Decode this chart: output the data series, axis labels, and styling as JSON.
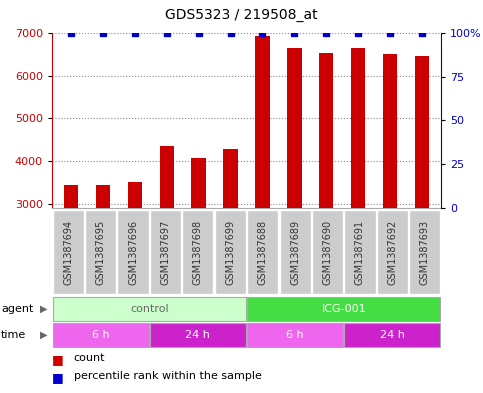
{
  "title": "GDS5323 / 219508_at",
  "samples": [
    "GSM1387694",
    "GSM1387695",
    "GSM1387696",
    "GSM1387697",
    "GSM1387698",
    "GSM1387699",
    "GSM1387688",
    "GSM1387689",
    "GSM1387690",
    "GSM1387691",
    "GSM1387692",
    "GSM1387693"
  ],
  "counts": [
    3450,
    3430,
    3520,
    4350,
    4060,
    4280,
    6940,
    6660,
    6540,
    6660,
    6500,
    6450
  ],
  "percentile": [
    100,
    100,
    100,
    100,
    100,
    100,
    100,
    100,
    100,
    100,
    100,
    100
  ],
  "ylim_left": [
    2900,
    7000
  ],
  "ylim_right": [
    0,
    100
  ],
  "yticks_left": [
    3000,
    4000,
    5000,
    6000,
    7000
  ],
  "yticks_right": [
    0,
    25,
    50,
    75,
    100
  ],
  "bar_color": "#cc0000",
  "percentile_color": "#0000cc",
  "bar_width": 0.45,
  "agent_control_color": "#ccffcc",
  "agent_icg_color": "#44dd44",
  "time_6h_color": "#ee66ee",
  "time_24h_color": "#cc22cc",
  "grid_color": "#888888",
  "sample_box_color": "#cccccc",
  "sample_text_color": "#333333",
  "agent_label": "agent",
  "time_label": "time",
  "control_label": "control",
  "icg_label": "ICG-001",
  "time_6h_label": "6 h",
  "time_24h_label": "24 h",
  "legend_count_label": "count",
  "legend_percentile_label": "percentile rank within the sample",
  "title_fontsize": 10,
  "tick_fontsize": 8,
  "sample_fontsize": 7,
  "label_fontsize": 8,
  "legend_fontsize": 8
}
